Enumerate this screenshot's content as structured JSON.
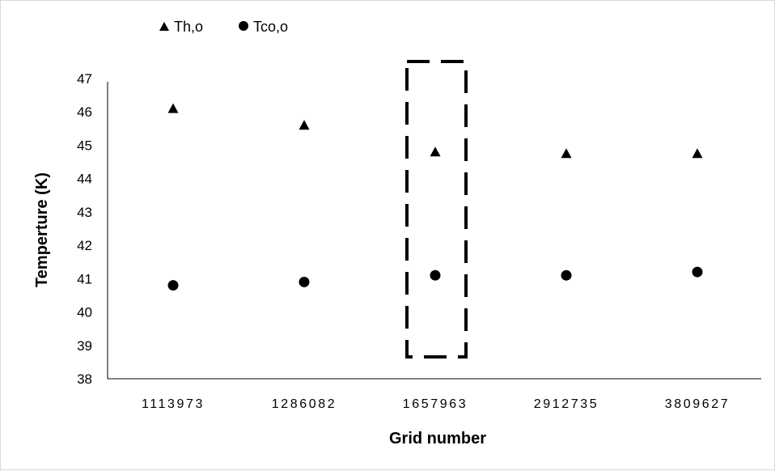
{
  "chart_data": {
    "type": "scatter",
    "title": "",
    "xlabel": "Grid number",
    "ylabel": "Temperture (K)",
    "categories": [
      "1113973",
      "1286082",
      "1657963",
      "2912735",
      "3809627"
    ],
    "ylim": [
      38,
      47
    ],
    "yticks": [
      "38",
      "39",
      "40",
      "41",
      "42",
      "43",
      "44",
      "45",
      "46",
      "47"
    ],
    "grid": false,
    "legend_position": "top-left",
    "series": [
      {
        "name": "Th,o",
        "marker": "triangle",
        "color": "#000000",
        "values": [
          46.1,
          45.6,
          44.8,
          44.75,
          44.75
        ]
      },
      {
        "name": "Tco,o",
        "marker": "circle",
        "color": "#000000",
        "values": [
          40.8,
          40.9,
          41.1,
          41.1,
          41.2
        ]
      }
    ],
    "annotation": {
      "type": "dashed-box",
      "category": "1657963",
      "color": "#000000"
    }
  }
}
